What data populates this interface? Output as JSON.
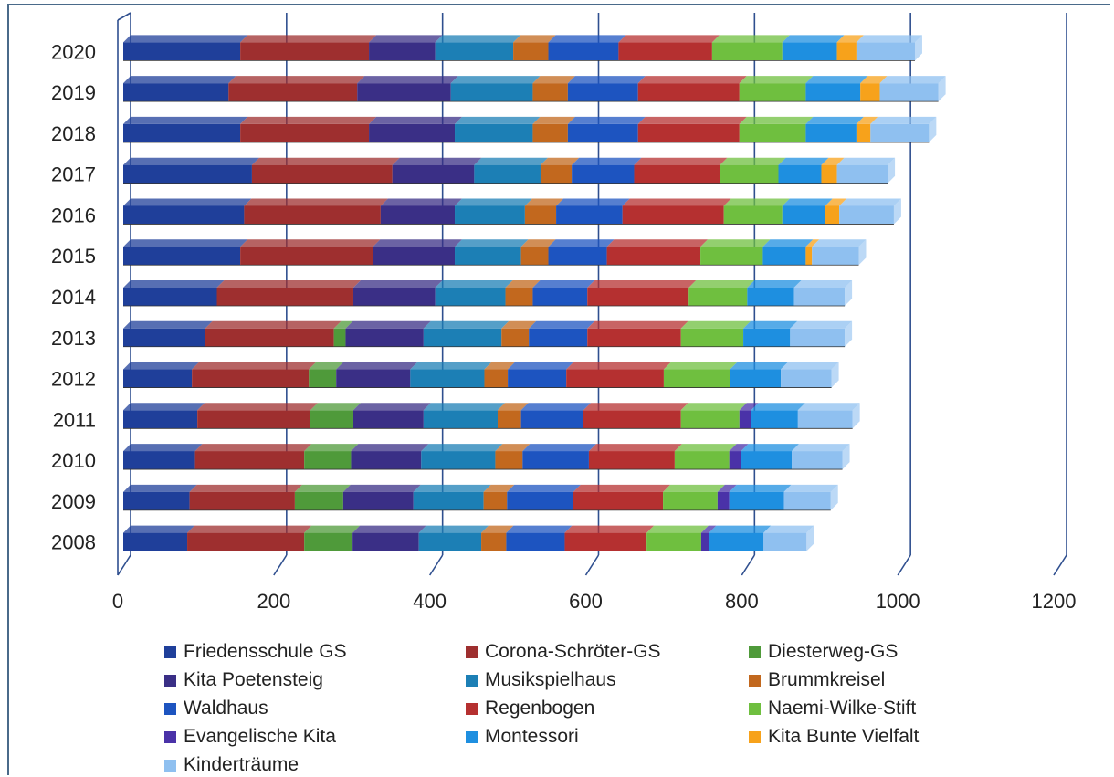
{
  "chart_data": {
    "type": "bar",
    "orientation": "horizontal",
    "stacked": true,
    "title": "",
    "xlabel": "",
    "ylabel": "",
    "xlim": [
      0,
      1200
    ],
    "x_ticks": [
      "0",
      "200",
      "400",
      "600",
      "800",
      "1000",
      "1200"
    ],
    "grid": true,
    "legend_position": "bottom",
    "categories": [
      "2020",
      "2019",
      "2018",
      "2017",
      "2016",
      "2015",
      "2014",
      "2013",
      "2012",
      "2011",
      "2010",
      "2009",
      "2008"
    ],
    "series": [
      {
        "name": "Friedensschule GS",
        "color": "#1f3f9a",
        "values": [
          150,
          135,
          150,
          165,
          155,
          150,
          120,
          105,
          88,
          95,
          92,
          85,
          82
        ]
      },
      {
        "name": "Corona-Schröter-GS",
        "color": "#9e2f2f",
        "values": [
          165,
          165,
          165,
          180,
          175,
          170,
          175,
          165,
          150,
          145,
          140,
          135,
          150
        ]
      },
      {
        "name": "Diesterweg-GS",
        "color": "#4f9a3a",
        "values": [
          0,
          0,
          0,
          0,
          0,
          0,
          0,
          15,
          35,
          55,
          60,
          62,
          62
        ]
      },
      {
        "name": "Kita Poetensteig",
        "color": "#3a2f86",
        "values": [
          85,
          120,
          110,
          105,
          95,
          105,
          105,
          100,
          95,
          90,
          90,
          90,
          85
        ]
      },
      {
        "name": "Musikspielhaus",
        "color": "#1c7fb5",
        "values": [
          100,
          105,
          100,
          85,
          90,
          85,
          90,
          100,
          95,
          95,
          95,
          90,
          80
        ]
      },
      {
        "name": "Brummkreisel",
        "color": "#c2681e",
        "values": [
          45,
          45,
          45,
          40,
          40,
          35,
          35,
          35,
          30,
          30,
          35,
          30,
          32
        ]
      },
      {
        "name": "Waldhaus",
        "color": "#1d54c0",
        "values": [
          90,
          90,
          90,
          80,
          85,
          75,
          70,
          75,
          75,
          80,
          85,
          85,
          75
        ]
      },
      {
        "name": "Regenbogen",
        "color": "#b53030",
        "values": [
          120,
          130,
          130,
          110,
          130,
          120,
          130,
          120,
          125,
          125,
          110,
          115,
          105
        ]
      },
      {
        "name": "Naemi-Wilke-Stift",
        "color": "#6fbf3f",
        "values": [
          90,
          85,
          85,
          75,
          75,
          80,
          75,
          80,
          85,
          75,
          70,
          70,
          70
        ]
      },
      {
        "name": "Evangelische Kita",
        "color": "#4a32a8",
        "values": [
          0,
          0,
          0,
          0,
          0,
          0,
          0,
          0,
          0,
          15,
          15,
          15,
          10
        ]
      },
      {
        "name": "Montessori",
        "color": "#1e8fe0",
        "values": [
          70,
          70,
          65,
          55,
          55,
          55,
          60,
          60,
          65,
          60,
          65,
          70,
          70
        ]
      },
      {
        "name": "Kita Bunte Vielfalt",
        "color": "#f7a21b",
        "values": [
          25,
          25,
          18,
          20,
          18,
          8,
          0,
          0,
          0,
          0,
          0,
          0,
          0
        ]
      },
      {
        "name": "Kinderträume",
        "color": "#8fc0f0",
        "values": [
          75,
          75,
          75,
          65,
          70,
          60,
          65,
          70,
          65,
          70,
          65,
          60,
          55
        ]
      }
    ]
  }
}
